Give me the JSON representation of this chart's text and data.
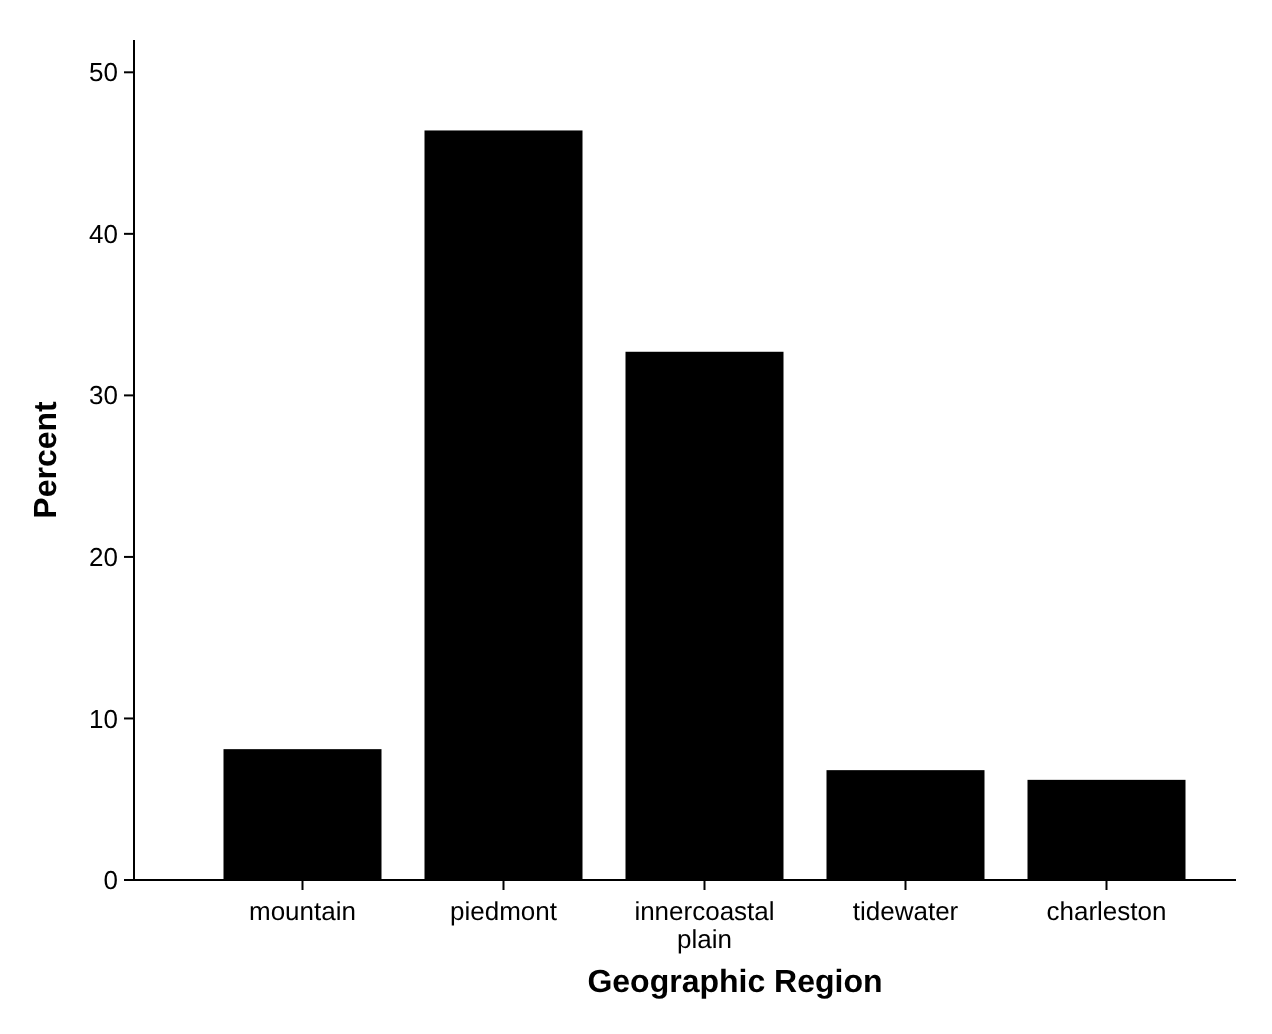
{
  "chart_data": {
    "type": "bar",
    "xlabel": "Geographic Region",
    "ylabel": "Percent",
    "categories": [
      "mountain",
      "piedmont",
      "innercoastal plain",
      "tidewater",
      "charleston"
    ],
    "values": [
      8.1,
      46.4,
      32.7,
      6.8,
      6.2
    ],
    "color": "#000000",
    "ylim": [
      0,
      52
    ],
    "yticks": [
      0,
      10,
      20,
      30,
      40,
      50
    ],
    "grid": false
  }
}
